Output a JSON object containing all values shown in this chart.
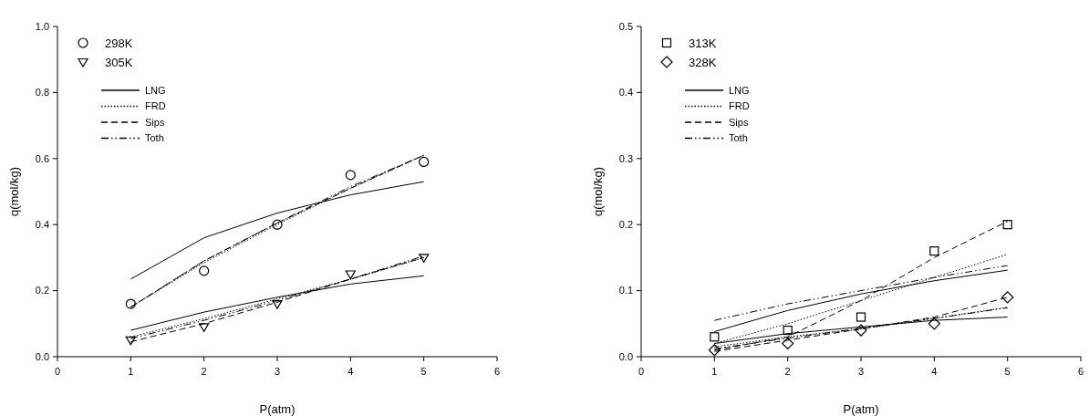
{
  "chart_data": [
    {
      "type": "line",
      "x": [
        1,
        2,
        3,
        4,
        5
      ],
      "xlabel": "P(atm)",
      "ylabel": "q(mol/kg)",
      "xlim": [
        0,
        6
      ],
      "xticks": [
        0,
        1,
        2,
        3,
        4,
        5,
        6
      ],
      "ylim": [
        0,
        1
      ],
      "yticks": [
        {
          "value": 0,
          "label": "0.0"
        },
        {
          "value": 0.2,
          "label": "0.2"
        },
        {
          "value": 0.4,
          "label": "0.4"
        },
        {
          "value": 0.6,
          "label": "0.6"
        },
        {
          "value": 0.8,
          "label": "0.8"
        },
        {
          "value": 1,
          "label": "1.0"
        }
      ],
      "grid": false,
      "legend": "top left",
      "series": [
        {
          "name": "298K",
          "type": "scatter",
          "marker": "circle",
          "color": "#000000",
          "values": [
            0.16,
            0.26,
            0.4,
            0.55,
            0.59
          ]
        },
        {
          "name": "305K",
          "type": "scatter",
          "marker": "triangle",
          "color": "#000000",
          "values": [
            0.05,
            0.09,
            0.16,
            0.25,
            0.3
          ]
        },
        {
          "name": "LNG",
          "type": "line",
          "line_style": "solid",
          "color": "#000000",
          "values": [
            0.235,
            0.36,
            0.435,
            0.49,
            0.53
          ]
        },
        {
          "name": "FRD",
          "type": "line",
          "line_style": "dotted",
          "color": "#000000",
          "values": [
            0.15,
            0.285,
            0.4,
            0.51,
            0.61
          ]
        },
        {
          "name": "Sips",
          "type": "line",
          "line_style": "dashed",
          "color": "#000000",
          "values": [
            0.15,
            0.29,
            0.405,
            0.51,
            0.61
          ]
        },
        {
          "name": "Toth",
          "type": "line",
          "line_style": "dashdot",
          "color": "#000000",
          "values": [
            0.15,
            0.29,
            0.405,
            0.515,
            0.61
          ]
        },
        {
          "line_style": "solid",
          "color": "#000000",
          "values": [
            0.08,
            0.135,
            0.18,
            0.22,
            0.245
          ]
        },
        {
          "line_style": "dotted",
          "color": "#000000",
          "values": [
            0.06,
            0.115,
            0.175,
            0.235,
            0.3
          ]
        },
        {
          "line_style": "dashed",
          "color": "#000000",
          "values": [
            0.045,
            0.1,
            0.165,
            0.235,
            0.3
          ]
        },
        {
          "line_style": "dashdot",
          "color": "#000000",
          "values": [
            0.055,
            0.11,
            0.17,
            0.235,
            0.305
          ]
        }
      ]
    },
    {
      "type": "line",
      "x": [
        1,
        2,
        3,
        4,
        5
      ],
      "xlabel": "P(atm)",
      "ylabel": "q(mol/kg)",
      "xlim": [
        0,
        6
      ],
      "xticks": [
        0,
        1,
        2,
        3,
        4,
        5,
        6
      ],
      "ylim": [
        0,
        0.5
      ],
      "yticks": [
        {
          "value": 0,
          "label": "0.0"
        },
        {
          "value": 0.1,
          "label": "0.1"
        },
        {
          "value": 0.2,
          "label": "0.2"
        },
        {
          "value": 0.3,
          "label": "0.3"
        },
        {
          "value": 0.4,
          "label": "0.4"
        },
        {
          "value": 0.5,
          "label": "0.5"
        }
      ],
      "grid": false,
      "legend": "top left",
      "series": [
        {
          "name": "313K",
          "type": "scatter",
          "marker": "square",
          "color": "#000000",
          "values": [
            0.03,
            0.04,
            0.06,
            0.16,
            0.2
          ]
        },
        {
          "name": "328K",
          "type": "scatter",
          "marker": "diamond",
          "color": "#000000",
          "values": [
            0.01,
            0.02,
            0.04,
            0.05,
            0.09
          ]
        },
        {
          "name": "LNG",
          "type": "line",
          "line_style": "solid",
          "color": "#000000",
          "values": [
            0.038,
            0.07,
            0.095,
            0.115,
            0.131
          ]
        },
        {
          "name": "FRD",
          "type": "line",
          "line_style": "dotted",
          "color": "#000000",
          "values": [
            0.02,
            0.05,
            0.085,
            0.12,
            0.155
          ]
        },
        {
          "name": "Sips",
          "type": "line",
          "line_style": "dashed",
          "color": "#000000",
          "values": [
            0.01,
            0.03,
            0.085,
            0.15,
            0.205
          ]
        },
        {
          "name": "Toth",
          "type": "line",
          "line_style": "dashdot",
          "color": "#000000",
          "values": [
            0.055,
            0.08,
            0.1,
            0.12,
            0.138
          ]
        },
        {
          "line_style": "solid",
          "color": "#000000",
          "values": [
            0.02,
            0.035,
            0.045,
            0.055,
            0.06
          ]
        },
        {
          "line_style": "dotted",
          "color": "#000000",
          "values": [
            0.015,
            0.03,
            0.042,
            0.058,
            0.075
          ]
        },
        {
          "line_style": "dashed",
          "color": "#000000",
          "values": [
            0.008,
            0.025,
            0.042,
            0.06,
            0.09
          ]
        },
        {
          "line_style": "dashdot",
          "color": "#000000",
          "values": [
            0.012,
            0.028,
            0.043,
            0.058,
            0.074
          ]
        }
      ]
    }
  ]
}
